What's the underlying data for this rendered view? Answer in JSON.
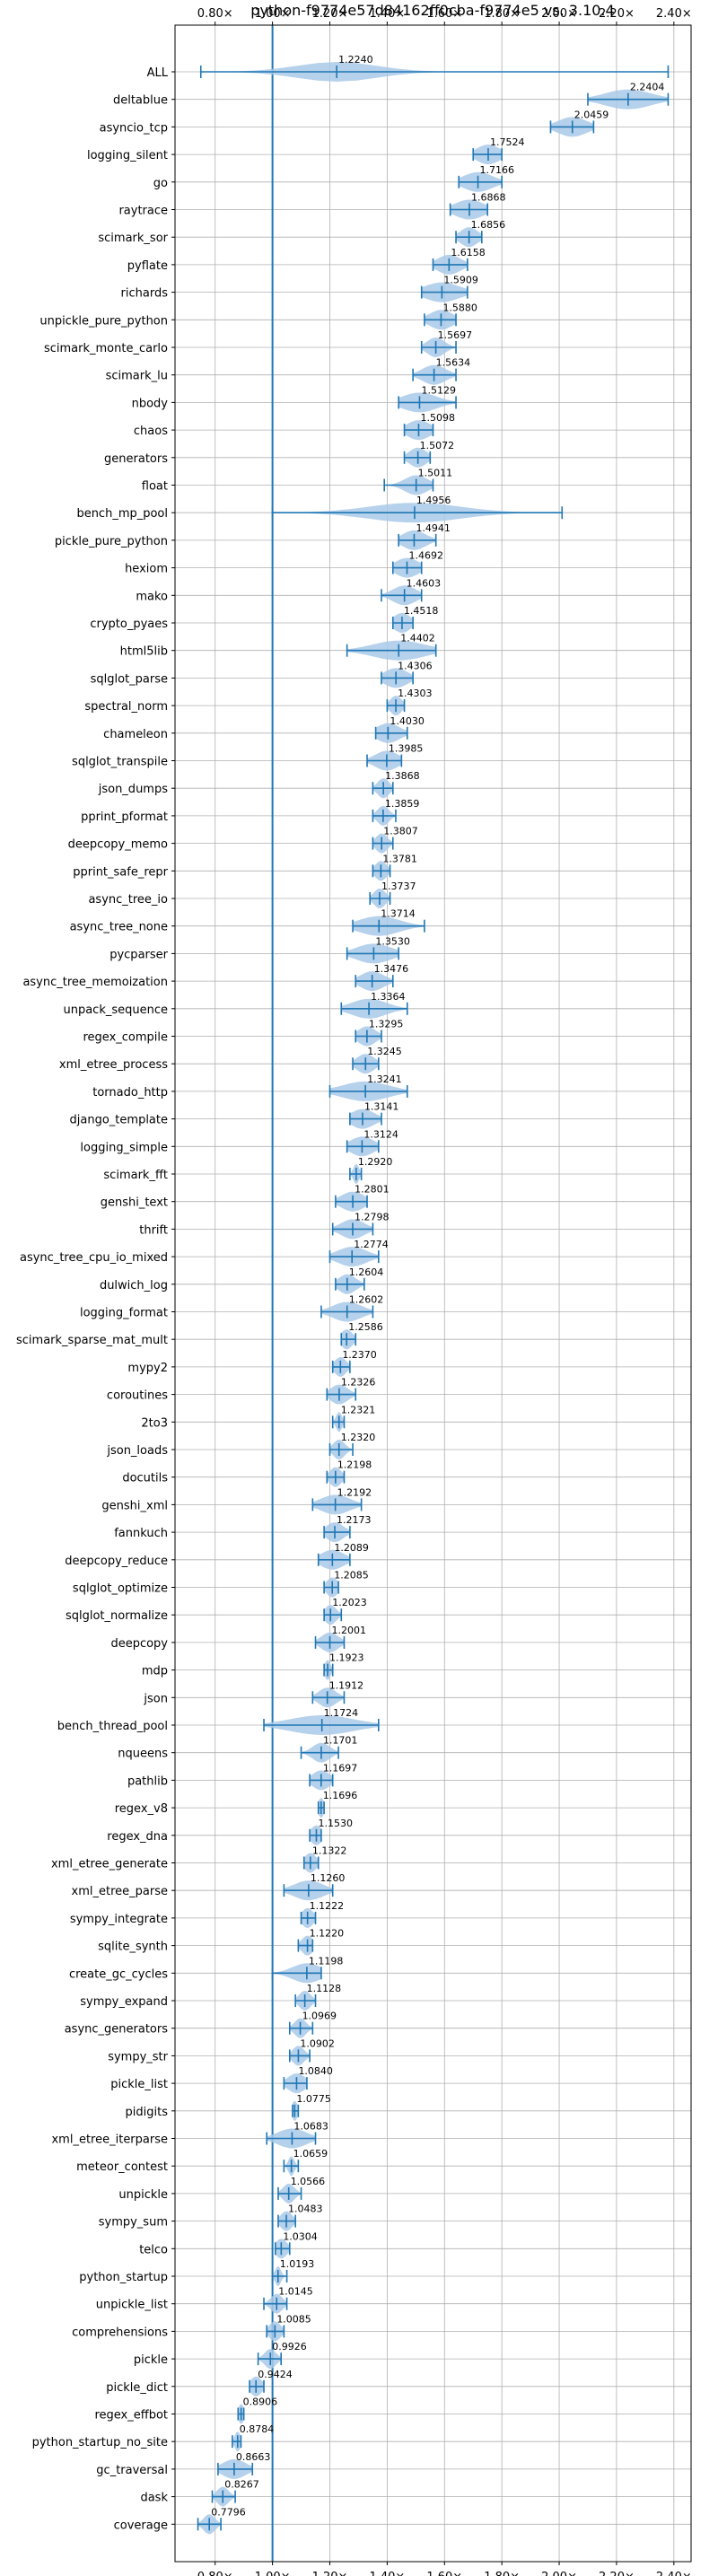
{
  "chart_data": {
    "type": "violin",
    "title": "python-f9774e57d84162ff0cba-f9774e5 vs. 3.10.4",
    "xlabel": "",
    "ylabel": "",
    "xlim": [
      0.66,
      2.46
    ],
    "x_ticks": [
      "0.80×",
      "1.00×",
      "1.20×",
      "1.40×",
      "1.60×",
      "1.80×",
      "2.00×",
      "2.20×",
      "2.40×"
    ],
    "x_tick_values": [
      0.8,
      1.0,
      1.2,
      1.4,
      1.6,
      1.8,
      2.0,
      2.2,
      2.4
    ],
    "grid": true,
    "reference_line": 1.0,
    "colors": {
      "violin": "#a9c9e8",
      "line": "#1f77b4",
      "grid": "#b0b0b0"
    },
    "categories": [
      "ALL",
      "deltablue",
      "asyncio_tcp",
      "logging_silent",
      "go",
      "raytrace",
      "scimark_sor",
      "pyflate",
      "richards",
      "unpickle_pure_python",
      "scimark_monte_carlo",
      "scimark_lu",
      "nbody",
      "chaos",
      "generators",
      "float",
      "bench_mp_pool",
      "pickle_pure_python",
      "hexiom",
      "mako",
      "crypto_pyaes",
      "html5lib",
      "sqlglot_parse",
      "spectral_norm",
      "chameleon",
      "sqlglot_transpile",
      "json_dumps",
      "pprint_pformat",
      "deepcopy_memo",
      "pprint_safe_repr",
      "async_tree_io",
      "async_tree_none",
      "pycparser",
      "async_tree_memoization",
      "unpack_sequence",
      "regex_compile",
      "xml_etree_process",
      "tornado_http",
      "django_template",
      "logging_simple",
      "scimark_fft",
      "genshi_text",
      "thrift",
      "async_tree_cpu_io_mixed",
      "dulwich_log",
      "logging_format",
      "scimark_sparse_mat_mult",
      "mypy2",
      "coroutines",
      "2to3",
      "json_loads",
      "docutils",
      "genshi_xml",
      "fannkuch",
      "deepcopy_reduce",
      "sqlglot_optimize",
      "sqlglot_normalize",
      "deepcopy",
      "mdp",
      "json",
      "bench_thread_pool",
      "nqueens",
      "pathlib",
      "regex_v8",
      "regex_dna",
      "xml_etree_generate",
      "xml_etree_parse",
      "sympy_integrate",
      "sqlite_synth",
      "create_gc_cycles",
      "sympy_expand",
      "async_generators",
      "sympy_str",
      "pickle_list",
      "pidigits",
      "xml_etree_iterparse",
      "meteor_contest",
      "unpickle",
      "sympy_sum",
      "telco",
      "python_startup",
      "unpickle_list",
      "comprehensions",
      "pickle",
      "pickle_dict",
      "regex_effbot",
      "python_startup_no_site",
      "gc_traversal",
      "dask",
      "coverage"
    ],
    "labels": [
      "1.2240",
      "2.2404",
      "2.0459",
      "1.7524",
      "1.7166",
      "1.6868",
      "1.6856",
      "1.6158",
      "1.5909",
      "1.5880",
      "1.5697",
      "1.5634",
      "1.5129",
      "1.5098",
      "1.5072",
      "1.5011",
      "1.4956",
      "1.4941",
      "1.4692",
      "1.4603",
      "1.4518",
      "1.4402",
      "1.4306",
      "1.4303",
      "1.4030",
      "1.3985",
      "1.3868",
      "1.3859",
      "1.3807",
      "1.3781",
      "1.3737",
      "1.3714",
      "1.3530",
      "1.3476",
      "1.3364",
      "1.3295",
      "1.3245",
      "1.3241",
      "1.3141",
      "1.3124",
      "1.2920",
      "1.2801",
      "1.2798",
      "1.2774",
      "1.2604",
      "1.2602",
      "1.2586",
      "1.2370",
      "1.2326",
      "1.2321",
      "1.2320",
      "1.2198",
      "1.2192",
      "1.2173",
      "1.2089",
      "1.2085",
      "1.2023",
      "1.2001",
      "1.1923",
      "1.1912",
      "1.1724",
      "1.1701",
      "1.1697",
      "1.1696",
      "1.1530",
      "1.1322",
      "1.1260",
      "1.1222",
      "1.1220",
      "1.1198",
      "1.1128",
      "1.0969",
      "1.0902",
      "1.0840",
      "1.0775",
      "1.0683",
      "1.0659",
      "1.0566",
      "1.0483",
      "1.0304",
      "1.0193",
      "1.0145",
      "1.0085",
      "0.9926",
      "0.9424",
      "0.8906",
      "0.8784",
      "0.8663",
      "0.8267",
      "0.7796"
    ],
    "values": [
      1.224,
      2.2404,
      2.0459,
      1.7524,
      1.7166,
      1.6868,
      1.6856,
      1.6158,
      1.5909,
      1.588,
      1.5697,
      1.5634,
      1.5129,
      1.5098,
      1.5072,
      1.5011,
      1.4956,
      1.4941,
      1.4692,
      1.4603,
      1.4518,
      1.4402,
      1.4306,
      1.4303,
      1.403,
      1.3985,
      1.3868,
      1.3859,
      1.3807,
      1.3781,
      1.3737,
      1.3714,
      1.353,
      1.3476,
      1.3364,
      1.3295,
      1.3245,
      1.3241,
      1.3141,
      1.3124,
      1.292,
      1.2801,
      1.2798,
      1.2774,
      1.2604,
      1.2602,
      1.2586,
      1.237,
      1.2326,
      1.2321,
      1.232,
      1.2198,
      1.2192,
      1.2173,
      1.2089,
      1.2085,
      1.2023,
      1.2001,
      1.1923,
      1.1912,
      1.1724,
      1.1701,
      1.1697,
      1.1696,
      1.153,
      1.1322,
      1.126,
      1.1222,
      1.122,
      1.1198,
      1.1128,
      1.0969,
      1.0902,
      1.084,
      1.0775,
      1.0683,
      1.0659,
      1.0566,
      1.0483,
      1.0304,
      1.0193,
      1.0145,
      1.0085,
      0.9926,
      0.9424,
      0.8906,
      0.8784,
      0.8663,
      0.8267,
      0.7796
    ],
    "min": [
      0.75,
      2.1,
      1.97,
      1.7,
      1.65,
      1.62,
      1.64,
      1.56,
      1.52,
      1.53,
      1.52,
      1.49,
      1.44,
      1.46,
      1.46,
      1.39,
      1.0,
      1.44,
      1.42,
      1.38,
      1.42,
      1.26,
      1.38,
      1.4,
      1.36,
      1.33,
      1.35,
      1.35,
      1.35,
      1.35,
      1.34,
      1.28,
      1.26,
      1.29,
      1.24,
      1.29,
      1.28,
      1.2,
      1.27,
      1.26,
      1.27,
      1.22,
      1.21,
      1.2,
      1.22,
      1.17,
      1.24,
      1.21,
      1.19,
      1.21,
      1.2,
      1.19,
      1.14,
      1.18,
      1.16,
      1.18,
      1.18,
      1.15,
      1.18,
      1.14,
      0.97,
      1.1,
      1.13,
      1.16,
      1.13,
      1.11,
      1.04,
      1.1,
      1.09,
      1.0,
      1.08,
      1.06,
      1.06,
      1.04,
      1.07,
      0.98,
      1.04,
      1.02,
      1.02,
      1.01,
      1.0,
      0.97,
      0.98,
      0.95,
      0.92,
      0.88,
      0.86,
      0.81,
      0.79,
      0.74
    ],
    "max": [
      2.38,
      2.38,
      2.12,
      1.8,
      1.8,
      1.75,
      1.73,
      1.68,
      1.68,
      1.64,
      1.64,
      1.64,
      1.64,
      1.56,
      1.55,
      1.56,
      2.01,
      1.57,
      1.52,
      1.52,
      1.49,
      1.57,
      1.49,
      1.46,
      1.47,
      1.45,
      1.42,
      1.43,
      1.42,
      1.41,
      1.41,
      1.53,
      1.44,
      1.42,
      1.47,
      1.38,
      1.37,
      1.47,
      1.38,
      1.37,
      1.31,
      1.33,
      1.35,
      1.37,
      1.32,
      1.35,
      1.29,
      1.27,
      1.29,
      1.25,
      1.28,
      1.25,
      1.31,
      1.27,
      1.27,
      1.23,
      1.24,
      1.25,
      1.21,
      1.25,
      1.37,
      1.23,
      1.21,
      1.18,
      1.17,
      1.16,
      1.21,
      1.15,
      1.14,
      1.17,
      1.15,
      1.14,
      1.13,
      1.12,
      1.09,
      1.15,
      1.09,
      1.1,
      1.08,
      1.06,
      1.05,
      1.05,
      1.04,
      1.03,
      0.97,
      0.9,
      0.89,
      0.93,
      0.87,
      0.82
    ],
    "spread": [
      0.14,
      0.08,
      0.05,
      0.04,
      0.05,
      0.05,
      0.03,
      0.04,
      0.06,
      0.04,
      0.03,
      0.04,
      0.06,
      0.04,
      0.03,
      0.04,
      0.16,
      0.04,
      0.04,
      0.04,
      0.03,
      0.09,
      0.04,
      0.02,
      0.04,
      0.04,
      0.02,
      0.02,
      0.02,
      0.02,
      0.02,
      0.07,
      0.06,
      0.04,
      0.06,
      0.03,
      0.03,
      0.08,
      0.04,
      0.04,
      0.01,
      0.04,
      0.04,
      0.05,
      0.03,
      0.05,
      0.02,
      0.02,
      0.03,
      0.01,
      0.02,
      0.02,
      0.05,
      0.03,
      0.04,
      0.02,
      0.02,
      0.03,
      0.01,
      0.03,
      0.11,
      0.03,
      0.03,
      0.01,
      0.02,
      0.02,
      0.05,
      0.02,
      0.02,
      0.05,
      0.02,
      0.02,
      0.02,
      0.03,
      0.01,
      0.05,
      0.01,
      0.02,
      0.02,
      0.02,
      0.01,
      0.02,
      0.02,
      0.02,
      0.02,
      0.01,
      0.01,
      0.04,
      0.02,
      0.02
    ]
  }
}
